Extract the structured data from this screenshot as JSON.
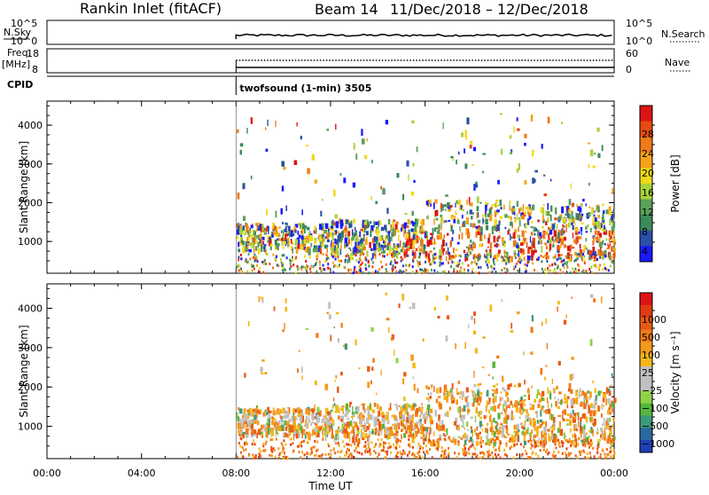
{
  "header": {
    "station": "Rankin Inlet (fitACF)",
    "beam": "Beam 14",
    "dates": "11/Dec/2018 – 12/Dec/2018"
  },
  "top_panels": {
    "nsky_label": "N.Sky",
    "nsky_ticks": [
      "10^5",
      "10^0"
    ],
    "nsearch_label": "N.Search",
    "nsearch_ticks": [
      "10^5",
      "10^0"
    ],
    "freq_label": "Freq.",
    "freq_unit": "[MHz]",
    "freq_ticks": [
      "18",
      "8"
    ],
    "nave_label": "Nave",
    "nave_ticks": [
      "60",
      "0"
    ],
    "cpid_label": "CPID",
    "cpid_text": "twofsound (1-min) 3505"
  },
  "chart_data": [
    {
      "type": "heatmap",
      "name": "power-panel",
      "xlabel": "",
      "ylabel": "Slant Range [km]",
      "x_ticks": [
        "00:00",
        "04:00",
        "08:00",
        "12:00",
        "16:00",
        "20:00",
        "00:00"
      ],
      "xlim_hours": [
        0,
        24
      ],
      "y_ticks": [
        1000,
        2000,
        3000,
        4000
      ],
      "ylim_km": [
        180,
        4620
      ],
      "data_start_hour": 8,
      "colorbar": {
        "label": "Power [dB]",
        "ticks": [
          "4",
          "8",
          "12",
          "16",
          "20",
          "24",
          "28"
        ],
        "colors": [
          "#1a1aff",
          "#2b4fa8",
          "#3d8a5a",
          "#5aa05a",
          "#a8d23a",
          "#f0d81a",
          "#f5a21a",
          "#f07a1a",
          "#e84a12",
          "#dd1414"
        ]
      },
      "grid": false
    },
    {
      "type": "heatmap",
      "name": "velocity-panel",
      "xlabel": "Time UT",
      "ylabel": "Slant Range [km]",
      "x_ticks": [
        "00:00",
        "04:00",
        "08:00",
        "12:00",
        "16:00",
        "20:00",
        "00:00"
      ],
      "xlim_hours": [
        0,
        24
      ],
      "y_ticks": [
        1000,
        2000,
        3000,
        4000
      ],
      "ylim_km": [
        180,
        4620
      ],
      "data_start_hour": 8,
      "colorbar": {
        "label": "Velocity [m s⁻¹]",
        "ticks": [
          "1000",
          "500",
          "100",
          "25",
          "−25",
          "−100",
          "−500",
          "−1000"
        ],
        "colors": [
          "#1f3fb4",
          "#2c68a0",
          "#3d9a7a",
          "#55b53c",
          "#8fd24a",
          "#c0c0c0",
          "#c0c0c0",
          "#f5b81a",
          "#f59b1a",
          "#f07a1a",
          "#e85a14",
          "#e03a12",
          "#dd1414"
        ]
      },
      "grid": false
    }
  ]
}
